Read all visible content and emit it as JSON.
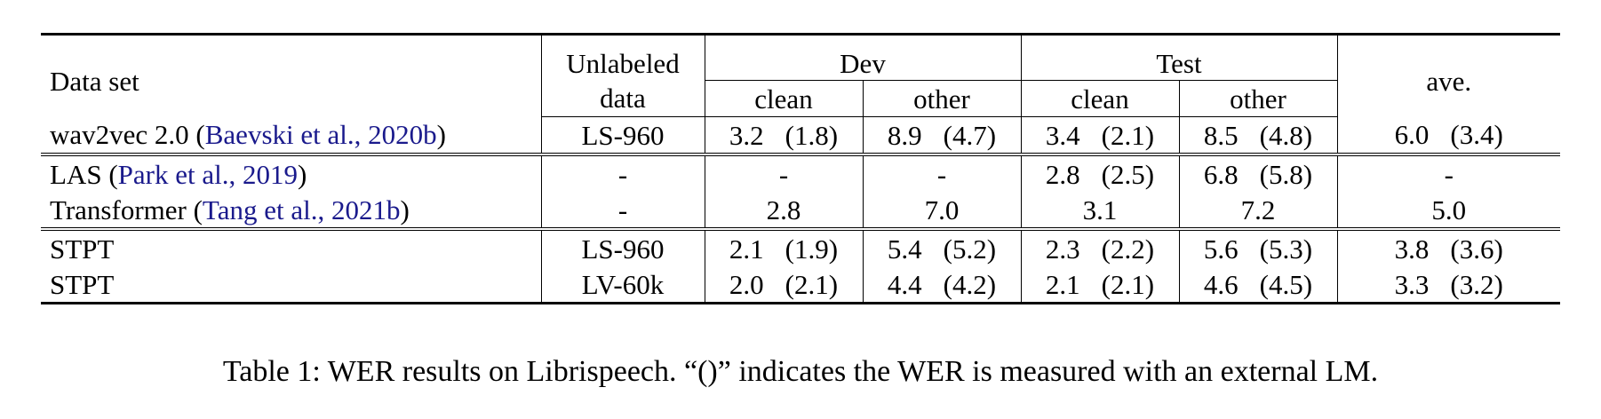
{
  "table": {
    "header": {
      "dataset": "Data set",
      "unlabeled_line1": "Unlabeled",
      "unlabeled_line2": "data",
      "dev": "Dev",
      "test": "Test",
      "ave": "ave.",
      "clean": "clean",
      "other": "other"
    },
    "rows": [
      {
        "name": "wav2vec 2.0",
        "cite_author": "Baevski et al.",
        "cite_year": "2020b",
        "data": "LS-960",
        "dev_clean": [
          "3.2",
          "(1.8)"
        ],
        "dev_other": [
          "8.9",
          "(4.7)"
        ],
        "test_clean": [
          "3.4",
          "(2.1)"
        ],
        "test_other": [
          "8.5",
          "(4.8)"
        ],
        "ave": [
          "6.0",
          "(3.4)"
        ]
      },
      {
        "name": "LAS",
        "cite_author": "Park et al.",
        "cite_year": "2019",
        "data": "-",
        "dev_clean": "-",
        "dev_other": "-",
        "test_clean": [
          "2.8",
          "(2.5)"
        ],
        "test_other": [
          "6.8",
          "(5.8)"
        ],
        "ave": "-"
      },
      {
        "name": "Transformer",
        "cite_author": "Tang et al.",
        "cite_year": "2021b",
        "data": "-",
        "dev_clean": "2.8",
        "dev_other": "7.0",
        "test_clean": "3.1",
        "test_other": "7.2",
        "ave": "5.0"
      },
      {
        "name": "STPT",
        "data": "LS-960",
        "dev_clean": [
          "2.1",
          "(1.9)"
        ],
        "dev_other": [
          "5.4",
          "(5.2)"
        ],
        "test_clean": [
          "2.3",
          "(2.2)"
        ],
        "test_other": [
          "5.6",
          "(5.3)"
        ],
        "ave": [
          "3.8",
          "(3.6)"
        ]
      },
      {
        "name": "STPT",
        "data": "LV-60k",
        "dev_clean": [
          "2.0",
          "(2.1)"
        ],
        "dev_other": [
          "4.4",
          "(4.2)"
        ],
        "test_clean": [
          "2.1",
          "(2.1)"
        ],
        "test_other": [
          "4.6",
          "(4.5)"
        ],
        "ave": [
          "3.3",
          "(3.2)"
        ]
      }
    ]
  },
  "caption": "Table 1: WER results on Librispeech. “()” indicates the WER is measured with an external LM."
}
